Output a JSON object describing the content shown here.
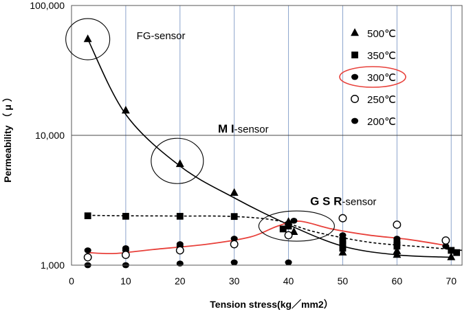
{
  "chart_data": {
    "type": "scatter",
    "title": "",
    "xlabel": "Tension stress(kg／mm2）",
    "ylabel": "Permeability （ μ ）",
    "xlim": [
      0,
      72
    ],
    "ylim": [
      1000,
      100000
    ],
    "y_scale": "log",
    "x_ticks": [
      "0",
      "10",
      "20",
      "30",
      "40",
      "50",
      "60",
      "70"
    ],
    "x_tick_values": [
      0,
      10,
      20,
      30,
      40,
      50,
      60,
      70
    ],
    "y_ticks": [
      "1,000",
      "10,000",
      "100,000"
    ],
    "y_tick_values": [
      1000,
      10000,
      100000
    ],
    "grid": "vertical lines every 10; horizontal line at 10,000",
    "legend_position": "top-right",
    "series": [
      {
        "name": "500℃",
        "marker": "triangle",
        "points": [
          [
            3,
            55000
          ],
          [
            10,
            15500
          ],
          [
            20,
            6000
          ],
          [
            30,
            3600
          ],
          [
            40,
            2150
          ],
          [
            41,
            1800
          ],
          [
            50,
            1250
          ],
          [
            60,
            1200
          ],
          [
            60,
            1280
          ],
          [
            70,
            1150
          ]
        ]
      },
      {
        "name": "350℃",
        "marker": "square",
        "points": [
          [
            3,
            2400
          ],
          [
            10,
            2380
          ],
          [
            20,
            2380
          ],
          [
            30,
            2370
          ],
          [
            39,
            1900
          ],
          [
            40,
            2000
          ],
          [
            50,
            1450
          ],
          [
            50,
            1350
          ],
          [
            50,
            1550
          ],
          [
            60,
            1400
          ],
          [
            60,
            1500
          ],
          [
            70,
            1300
          ],
          [
            71,
            1250
          ]
        ]
      },
      {
        "name": "300℃",
        "marker": "filled-circle",
        "points": [
          [
            3,
            1300
          ],
          [
            10,
            1350
          ],
          [
            10,
            1300
          ],
          [
            20,
            1400
          ],
          [
            20,
            1450
          ],
          [
            30,
            1600
          ],
          [
            40,
            2100
          ],
          [
            41,
            2200
          ],
          [
            50,
            1700
          ],
          [
            50,
            1600
          ],
          [
            60,
            1600
          ],
          [
            60,
            1500
          ],
          [
            69,
            1400
          ]
        ]
      },
      {
        "name": "250℃",
        "marker": "open-circle",
        "points": [
          [
            3,
            1150
          ],
          [
            10,
            1200
          ],
          [
            20,
            1300
          ],
          [
            30,
            1450
          ],
          [
            40,
            1700
          ],
          [
            50,
            2300
          ],
          [
            60,
            2050
          ],
          [
            69,
            1550
          ]
        ]
      },
      {
        "name": "200℃",
        "marker": "filled-circle",
        "points": [
          [
            3,
            1000
          ],
          [
            10,
            1000
          ],
          [
            20,
            1030
          ],
          [
            30,
            1050
          ],
          [
            40,
            1050
          ]
        ]
      }
    ],
    "fit_curves": [
      {
        "style": "solid-black",
        "x": [
          3,
          10,
          20,
          30,
          40,
          50,
          60,
          70
        ],
        "y": [
          55000,
          14500,
          5800,
          3300,
          2050,
          1400,
          1200,
          1150
        ]
      },
      {
        "style": "dashed-black",
        "x": [
          3,
          10,
          20,
          30,
          38,
          45,
          55,
          65,
          72
        ],
        "y": [
          2420,
          2400,
          2390,
          2370,
          2200,
          1800,
          1500,
          1380,
          1300
        ]
      },
      {
        "style": "solid-red",
        "x": [
          3,
          8,
          15,
          25,
          33,
          38,
          42,
          48,
          55,
          62,
          69
        ],
        "y": [
          1250,
          1230,
          1320,
          1450,
          1650,
          2000,
          2180,
          1900,
          1700,
          1580,
          1420
        ]
      }
    ],
    "annotations": [
      {
        "text": "FG-sensor",
        "bold_prefix": "",
        "at": [
          3,
          55000
        ],
        "text_at": [
          12,
          55000
        ]
      },
      {
        "text": "-sensor",
        "bold_prefix": "M I",
        "at": [
          19.5,
          6200
        ],
        "text_at": [
          27,
          10500
        ]
      },
      {
        "text": "-sensor",
        "bold_prefix": "G S R",
        "at": [
          41.5,
          2000
        ],
        "text_at": [
          44,
          2900
        ]
      }
    ],
    "highlighted_legend": "300℃"
  },
  "colors": {
    "red_curve": "#e8403a",
    "grid": "#8aa3cc",
    "hgrid": "#444444",
    "marker": "#000000"
  }
}
